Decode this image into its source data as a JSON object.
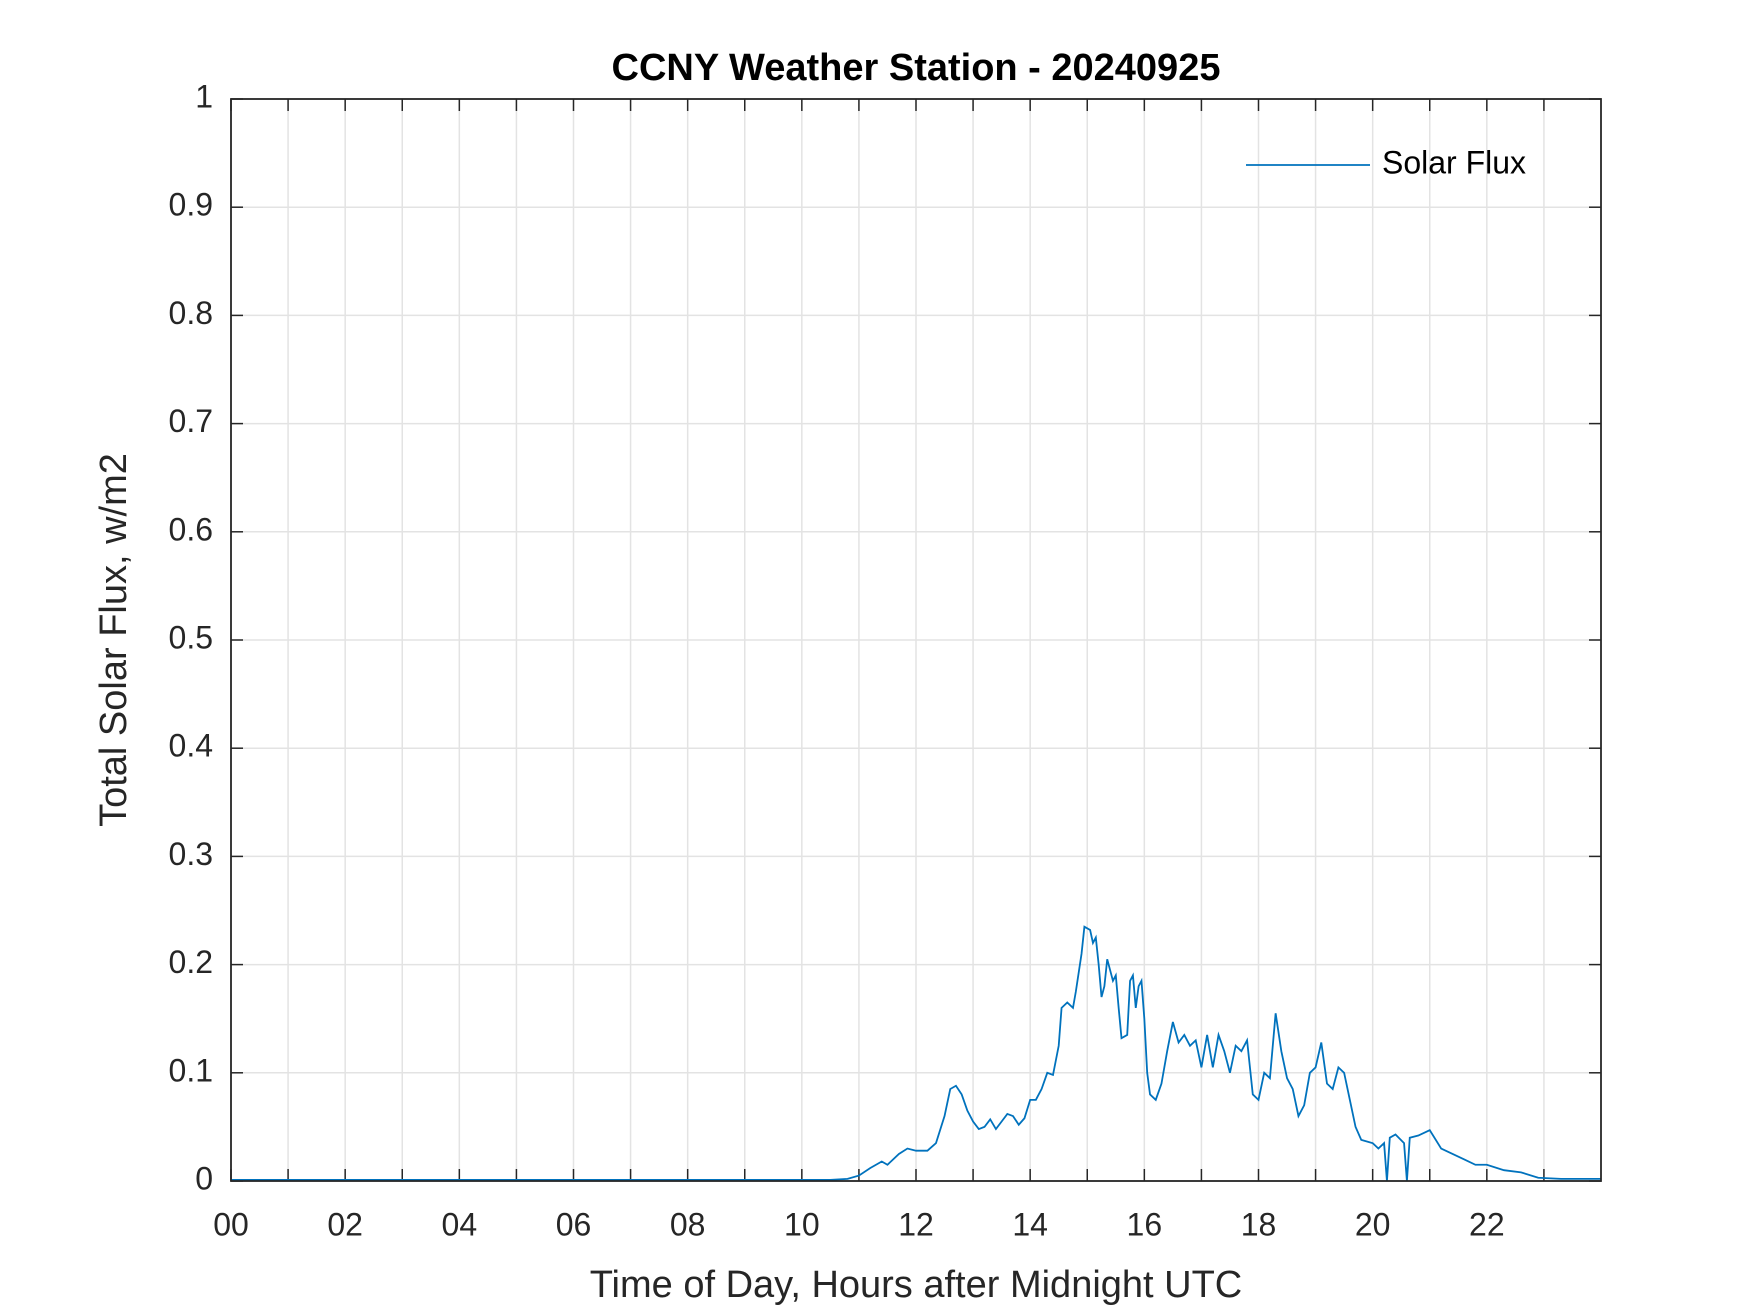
{
  "chart_data": {
    "type": "line",
    "title": "CCNY Weather Station - 20240925",
    "xlabel": "Time of Day, Hours after Midnight UTC",
    "ylabel": "Total Solar Flux, w/m2",
    "xlim": [
      0,
      24
    ],
    "ylim": [
      0,
      1
    ],
    "xticks": [
      {
        "value": 0,
        "label": "00"
      },
      {
        "value": 2,
        "label": "02"
      },
      {
        "value": 4,
        "label": "04"
      },
      {
        "value": 6,
        "label": "06"
      },
      {
        "value": 8,
        "label": "08"
      },
      {
        "value": 10,
        "label": "10"
      },
      12,
      14,
      16,
      18,
      20,
      22
    ],
    "xminorticks": [
      1,
      3,
      5,
      7,
      9,
      11,
      13,
      15,
      17,
      19,
      21,
      23
    ],
    "yticks": [
      0,
      0.1,
      0.2,
      0.3,
      0.4,
      0.5,
      0.6,
      0.7,
      0.8,
      0.9,
      1
    ],
    "grid": true,
    "legend": "northeast",
    "x": [
      0,
      2,
      4,
      6,
      8,
      10,
      10.5,
      10.8,
      11.0,
      11.2,
      11.4,
      11.5,
      11.7,
      11.85,
      12.0,
      12.2,
      12.35,
      12.5,
      12.6,
      12.7,
      12.8,
      12.9,
      13.0,
      13.1,
      13.2,
      13.3,
      13.4,
      13.5,
      13.6,
      13.7,
      13.8,
      13.9,
      14.0,
      14.1,
      14.2,
      14.3,
      14.4,
      14.5,
      14.55,
      14.65,
      14.75,
      14.8,
      14.9,
      14.95,
      15.05,
      15.1,
      15.15,
      15.2,
      15.25,
      15.3,
      15.35,
      15.45,
      15.5,
      15.55,
      15.6,
      15.7,
      15.75,
      15.8,
      15.85,
      15.9,
      15.95,
      16.0,
      16.05,
      16.1,
      16.2,
      16.3,
      16.4,
      16.5,
      16.6,
      16.7,
      16.8,
      16.9,
      17.0,
      17.1,
      17.2,
      17.3,
      17.4,
      17.5,
      17.6,
      17.7,
      17.8,
      17.9,
      18.0,
      18.1,
      18.2,
      18.3,
      18.4,
      18.5,
      18.6,
      18.7,
      18.8,
      18.9,
      19.0,
      19.1,
      19.2,
      19.3,
      19.4,
      19.5,
      19.6,
      19.7,
      19.8,
      20.0,
      20.1,
      20.2,
      20.25,
      20.3,
      20.4,
      20.55,
      20.6,
      20.65,
      20.8,
      21.0,
      21.2,
      21.4,
      21.6,
      21.8,
      22.0,
      22.3,
      22.6,
      22.9,
      23.3,
      24.0
    ],
    "series": [
      {
        "name": "Solar Flux",
        "color": "#0072bd",
        "values": [
          0.001,
          0.001,
          0.001,
          0.001,
          0.001,
          0.001,
          0.001,
          0.002,
          0.005,
          0.012,
          0.018,
          0.015,
          0.025,
          0.03,
          0.028,
          0.028,
          0.035,
          0.06,
          0.085,
          0.088,
          0.08,
          0.065,
          0.055,
          0.048,
          0.05,
          0.057,
          0.048,
          0.055,
          0.062,
          0.06,
          0.052,
          0.058,
          0.075,
          0.075,
          0.085,
          0.1,
          0.098,
          0.125,
          0.16,
          0.165,
          0.16,
          0.175,
          0.21,
          0.235,
          0.232,
          0.22,
          0.225,
          0.2,
          0.17,
          0.18,
          0.205,
          0.185,
          0.19,
          0.16,
          0.132,
          0.135,
          0.185,
          0.19,
          0.16,
          0.18,
          0.185,
          0.15,
          0.1,
          0.08,
          0.075,
          0.09,
          0.12,
          0.147,
          0.128,
          0.135,
          0.125,
          0.13,
          0.105,
          0.135,
          0.105,
          0.135,
          0.12,
          0.1,
          0.125,
          0.12,
          0.13,
          0.08,
          0.075,
          0.1,
          0.095,
          0.155,
          0.12,
          0.095,
          0.085,
          0.06,
          0.07,
          0.1,
          0.105,
          0.128,
          0.09,
          0.085,
          0.105,
          0.1,
          0.075,
          0.05,
          0.038,
          0.035,
          0.03,
          0.035,
          0.0,
          0.04,
          0.043,
          0.035,
          0.0,
          0.04,
          0.042,
          0.047,
          0.03,
          0.025,
          0.02,
          0.015,
          0.015,
          0.01,
          0.008,
          0.003,
          0.002,
          0.002
        ]
      }
    ]
  }
}
